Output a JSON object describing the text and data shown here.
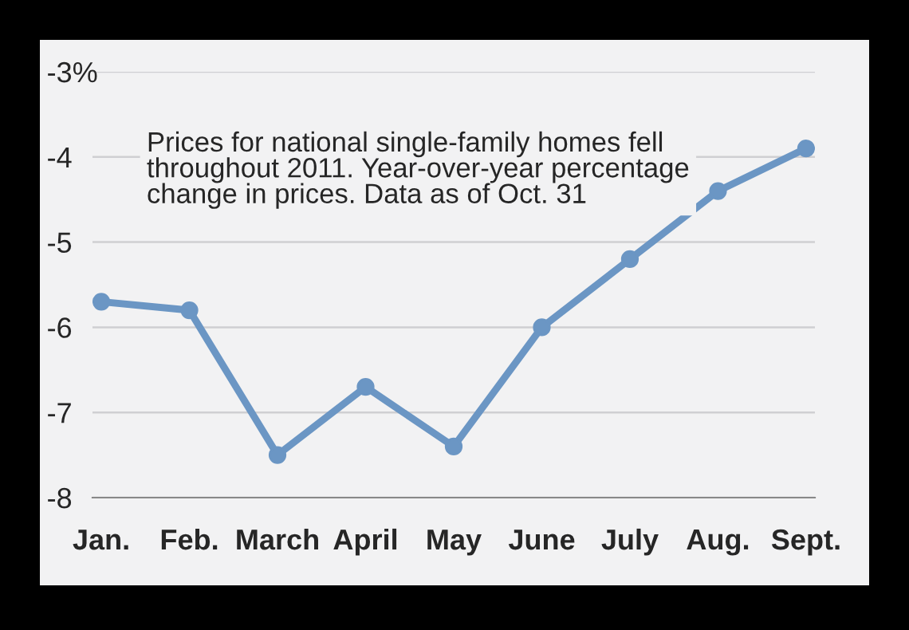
{
  "chart_data": {
    "type": "line",
    "categories": [
      "Jan.",
      "Feb.",
      "March",
      "April",
      "May",
      "June",
      "July",
      "Aug.",
      "Sept."
    ],
    "series": [
      {
        "color": "#6b96c4",
        "values": [
          -5.7,
          -5.8,
          -7.5,
          -6.7,
          -7.4,
          -6.0,
          -5.2,
          -4.4,
          -3.9
        ]
      }
    ],
    "ylim": [
      -8,
      -3
    ],
    "yticks": [
      {
        "value": -3,
        "label": "-3%"
      },
      {
        "value": -4,
        "label": "-4"
      },
      {
        "value": -5,
        "label": "-5"
      },
      {
        "value": -6,
        "label": "-6"
      },
      {
        "value": -7,
        "label": "-7"
      },
      {
        "value": -8,
        "label": "-8"
      }
    ],
    "grid": "y",
    "marker": "circle",
    "line_style": "solid",
    "annotations": [
      "Prices for national single-family homes fell\nthroughout 2011. Year-over-year percentage\nchange in prices. Data as of Oct. 31"
    ]
  }
}
